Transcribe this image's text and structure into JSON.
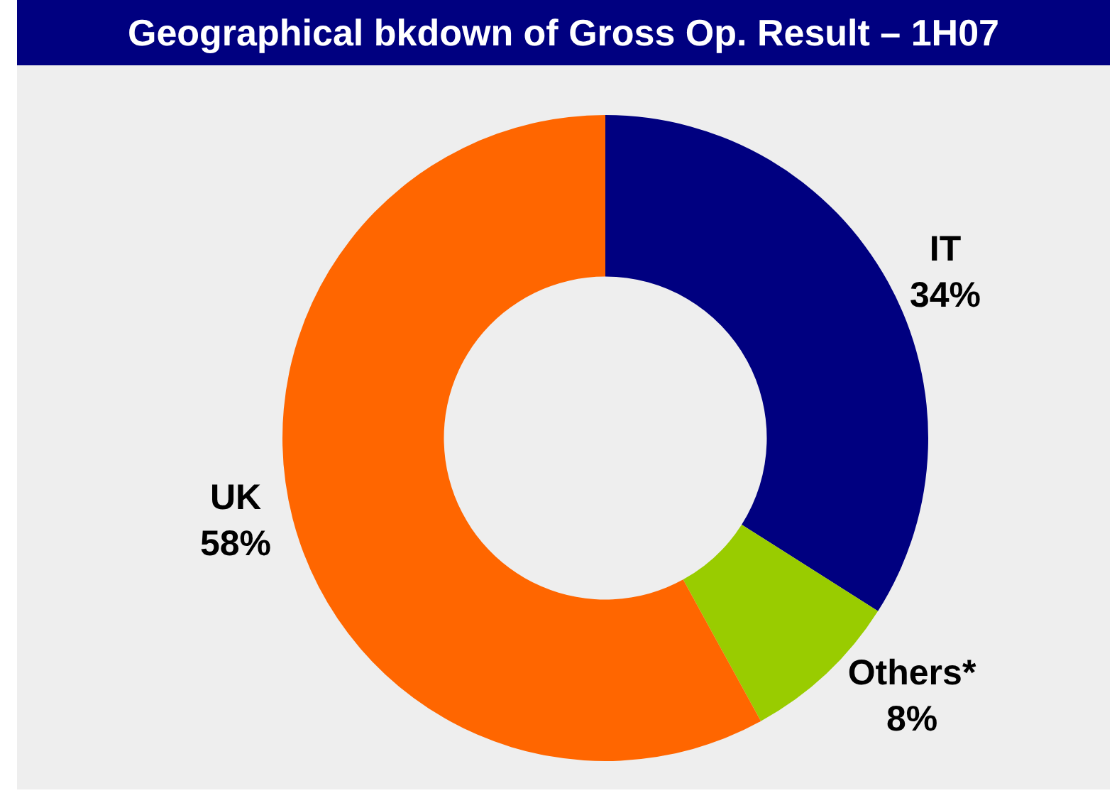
{
  "chart_data": {
    "type": "donut",
    "title": "Geographical bkdown of Gross Op. Result – 1H07",
    "categories": [
      "IT",
      "Others*",
      "UK"
    ],
    "values": [
      34,
      8,
      58
    ],
    "value_labels": [
      "34%",
      "8%",
      "58%"
    ],
    "colors": [
      "#000080",
      "#99cc00",
      "#ff6600"
    ],
    "legend": false
  }
}
